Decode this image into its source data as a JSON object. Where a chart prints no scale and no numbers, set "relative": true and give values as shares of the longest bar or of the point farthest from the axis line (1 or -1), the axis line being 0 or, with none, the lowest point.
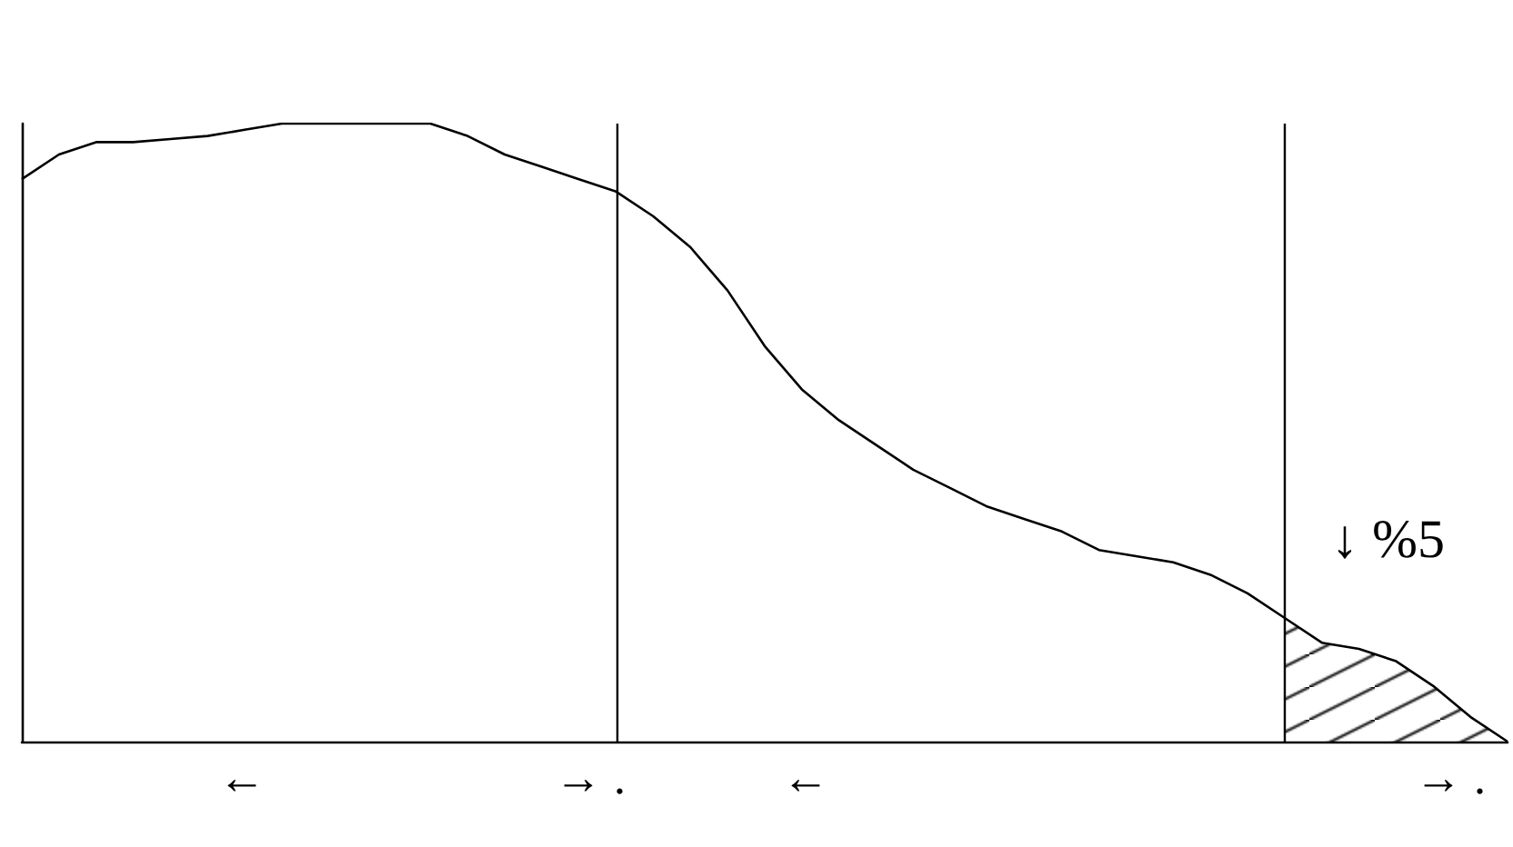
{
  "chart_data": {
    "type": "line",
    "relative": true,
    "categories": [
      null,
      null,
      null,
      null,
      null,
      null,
      null,
      null,
      null,
      null,
      null,
      null,
      null,
      null,
      null,
      null,
      null,
      null,
      null,
      null,
      null,
      null,
      null,
      null,
      null,
      null,
      null,
      null,
      null,
      null,
      null,
      null,
      null,
      null,
      null,
      null,
      null,
      null,
      null,
      null,
      null
    ],
    "series": [
      {
        "color": "#000000",
        "values": [
          0.91,
          0.95,
          0.97,
          0.97,
          0.975,
          0.98,
          0.99,
          1.0,
          1.0,
          1.0,
          1.0,
          1.0,
          0.98,
          0.95,
          0.93,
          0.91,
          0.89,
          0.85,
          0.8,
          0.73,
          0.64,
          0.57,
          0.52,
          0.48,
          0.44,
          0.41,
          0.38,
          0.36,
          0.34,
          0.31,
          0.3,
          0.29,
          0.27,
          0.24,
          0.2,
          0.16,
          0.15,
          0.13,
          0.09,
          0.04,
          0
        ]
      },
      {
        "type": "area",
        "color": "#000000",
        "values": [
          null,
          null,
          null,
          null,
          null,
          null,
          null,
          null,
          null,
          null,
          null,
          null,
          null,
          null,
          null,
          null,
          null,
          null,
          null,
          null,
          null,
          null,
          null,
          null,
          null,
          null,
          null,
          null,
          null,
          null,
          null,
          null,
          null,
          null,
          0.2,
          0.16,
          0.15,
          0.13,
          0.09,
          0.04,
          0
        ]
      }
    ],
    "annotations": [
      "↓ %5",
      "←",
      "→ .",
      "←",
      "→ ."
    ],
    "grid": false,
    "marker": "none",
    "line_style": "solid"
  }
}
